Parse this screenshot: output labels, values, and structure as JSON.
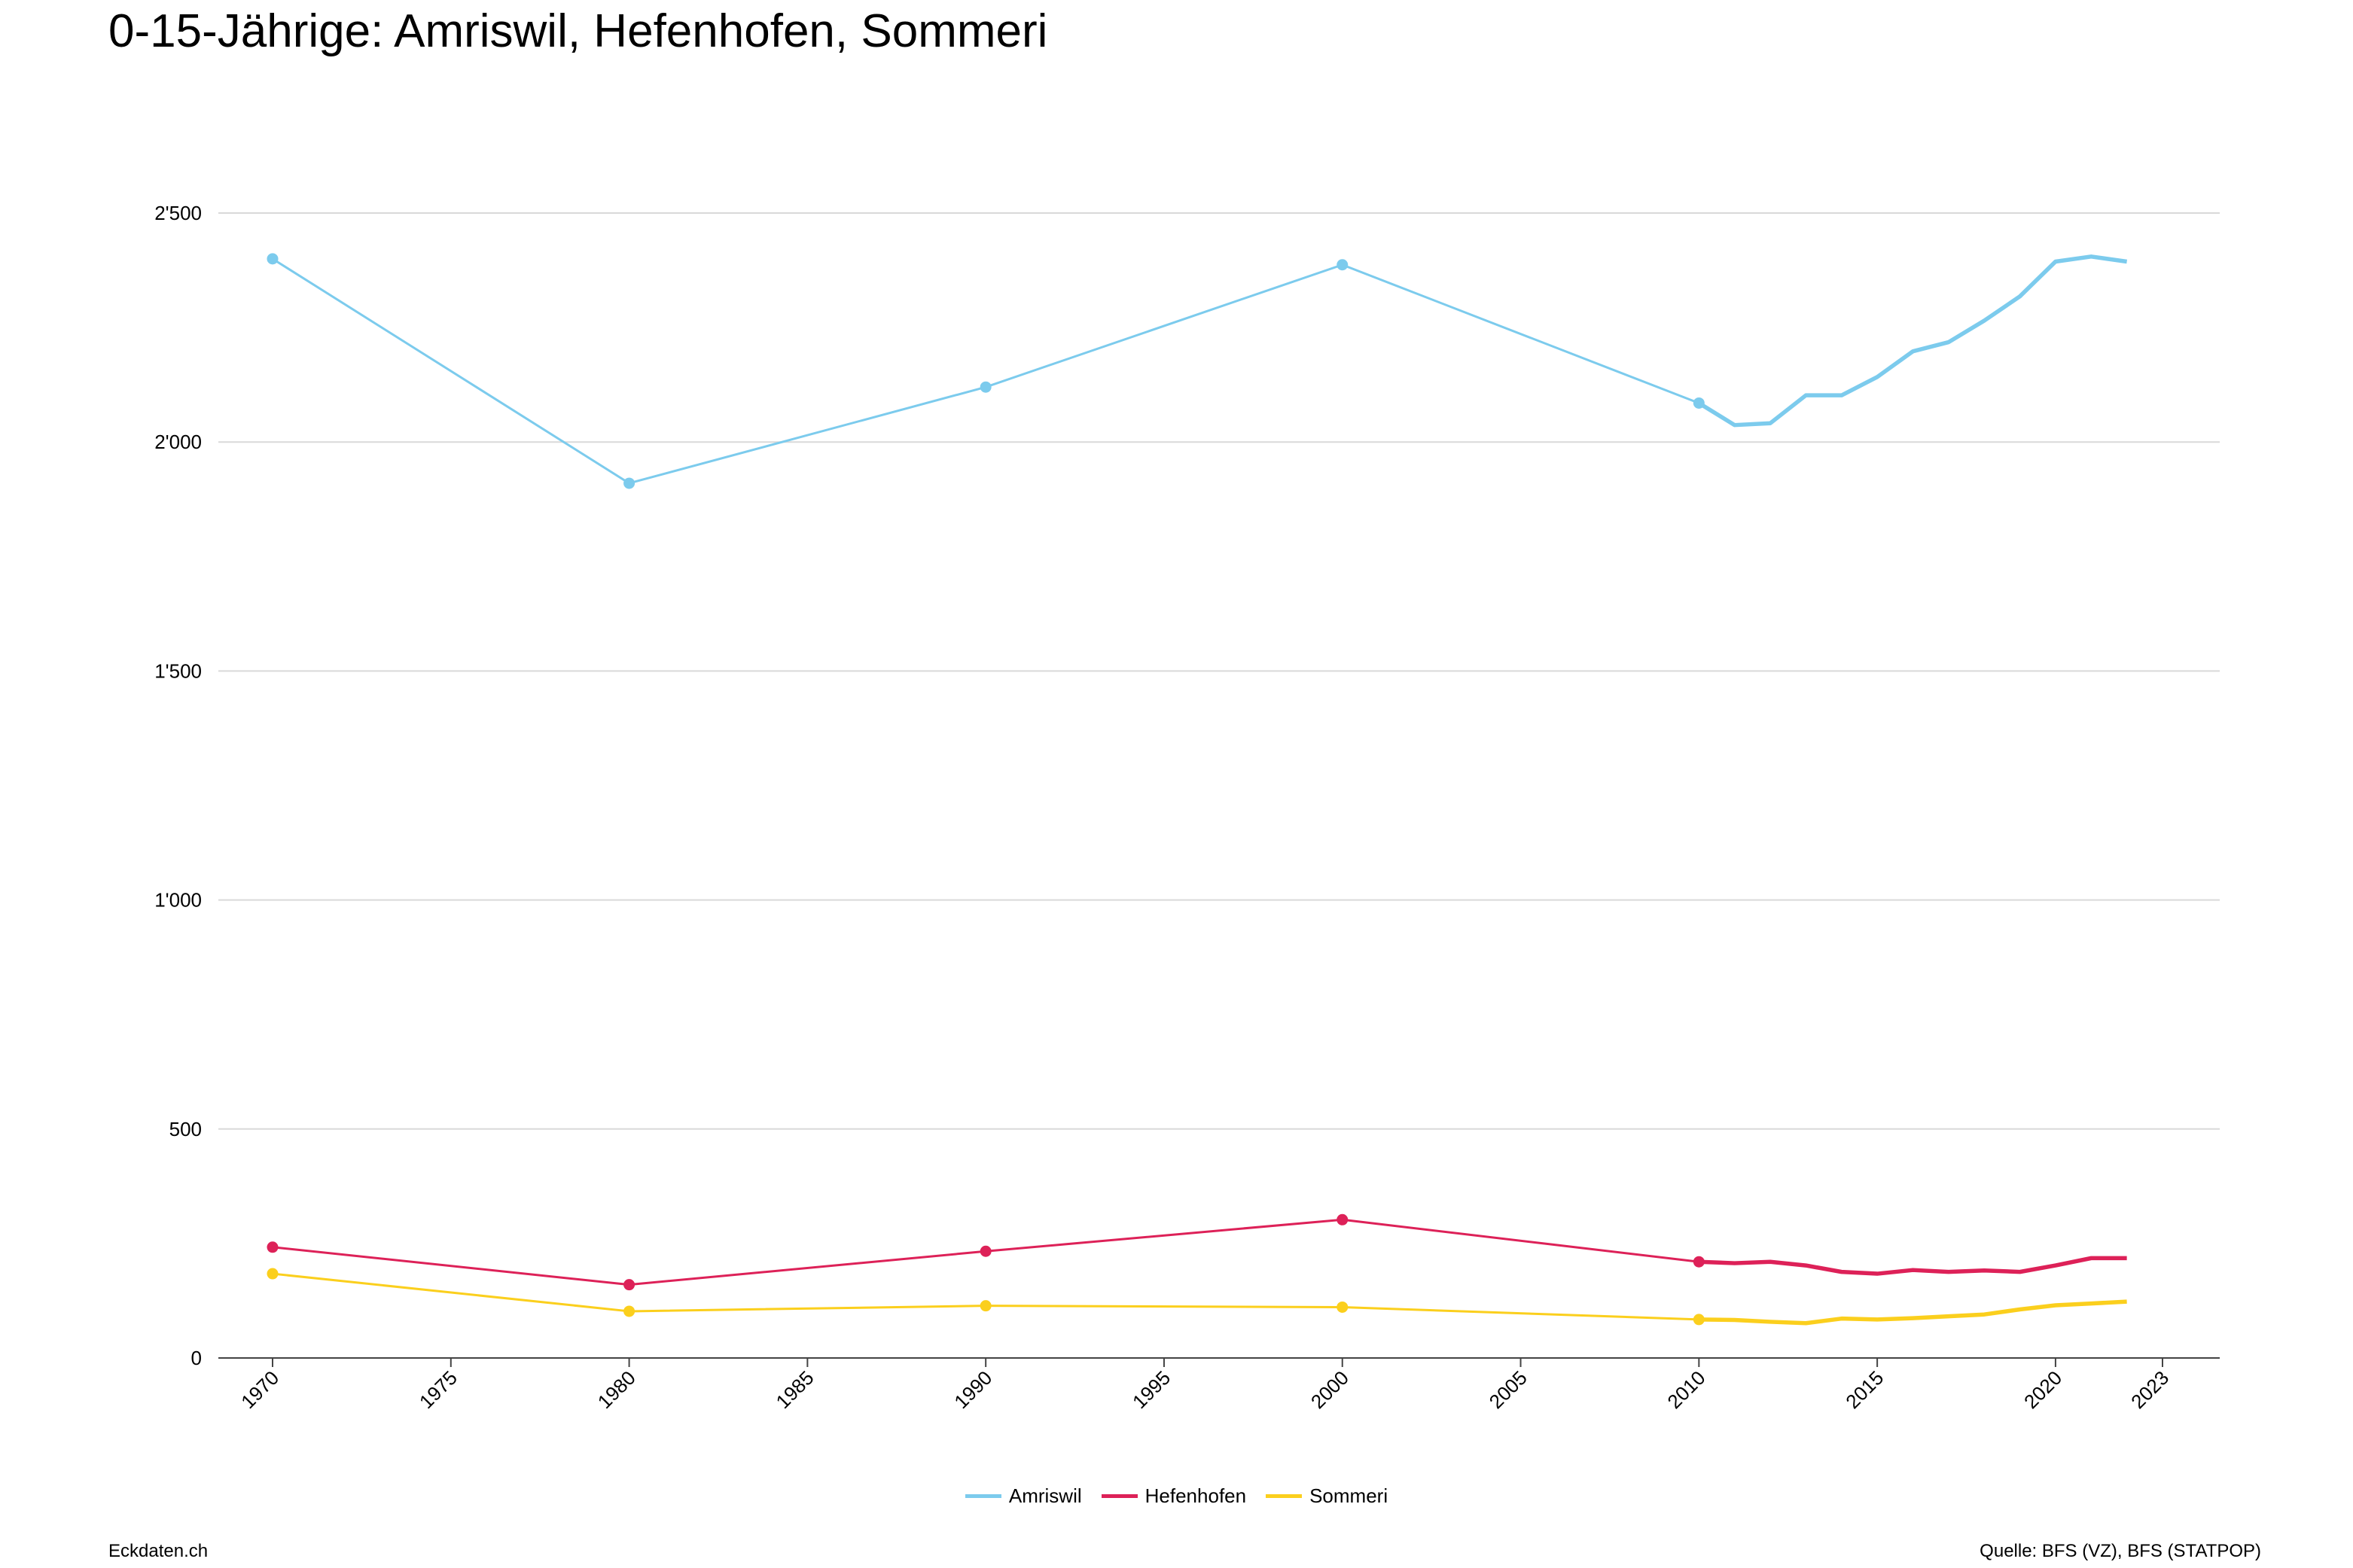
{
  "title": "0-15-Jährige: Amriswil, Hefenhofen, Sommeri",
  "footer": {
    "left": "Eckdaten.ch",
    "right": "Quelle: BFS (VZ), BFS (STATPOP)"
  },
  "chart_data": {
    "type": "line",
    "title": "0-15-Jährige: Amriswil, Hefenhofen, Sommeri",
    "xlabel": "",
    "ylabel": "",
    "xlim": [
      1969,
      2024.5
    ],
    "ylim": [
      0,
      2500
    ],
    "y_ticks": [
      0,
      500,
      1000,
      1500,
      2000,
      2500
    ],
    "y_tick_labels": [
      "0",
      "500",
      "1'000",
      "1'500",
      "2'000",
      "2'500"
    ],
    "x_ticks": [
      1970,
      1975,
      1980,
      1985,
      1990,
      1995,
      2000,
      2005,
      2010,
      2015,
      2020,
      2023
    ],
    "grid": true,
    "legend_position": "bottom-center",
    "series": [
      {
        "name": "Amriswil",
        "color": "#7ccbed",
        "x": [
          1970,
          1980,
          1990,
          2000,
          2010,
          2011,
          2012,
          2013,
          2014,
          2015,
          2016,
          2017,
          2018,
          2019,
          2020,
          2021,
          2022
        ],
        "values": [
          2400,
          1910,
          2120,
          2387,
          2085,
          2037,
          2041,
          2102,
          2102,
          2142,
          2198,
          2218,
          2265,
          2318,
          2394,
          2405,
          2394
        ],
        "markers_at": [
          1970,
          1980,
          1990,
          2000,
          2010
        ]
      },
      {
        "name": "Hefenhofen",
        "color": "#dd2158",
        "x": [
          1970,
          1980,
          1990,
          2000,
          2010,
          2011,
          2012,
          2013,
          2014,
          2015,
          2016,
          2017,
          2018,
          2019,
          2020,
          2021,
          2022
        ],
        "values": [
          242,
          160,
          233,
          302,
          210,
          207,
          210,
          202,
          188,
          184,
          192,
          188,
          191,
          188,
          202,
          218,
          218
        ],
        "markers_at": [
          1970,
          1980,
          1990,
          2000,
          2010
        ]
      },
      {
        "name": "Sommeri",
        "color": "#fbcf1d",
        "x": [
          1970,
          1980,
          1990,
          2000,
          2010,
          2011,
          2012,
          2013,
          2014,
          2015,
          2016,
          2017,
          2018,
          2019,
          2020,
          2021,
          2022
        ],
        "values": [
          184,
          102,
          114,
          111,
          84,
          83,
          79,
          76,
          86,
          84,
          87,
          91,
          95,
          106,
          115,
          119,
          123
        ],
        "markers_at": [
          1970,
          1980,
          1990,
          2000,
          2010
        ]
      }
    ]
  }
}
